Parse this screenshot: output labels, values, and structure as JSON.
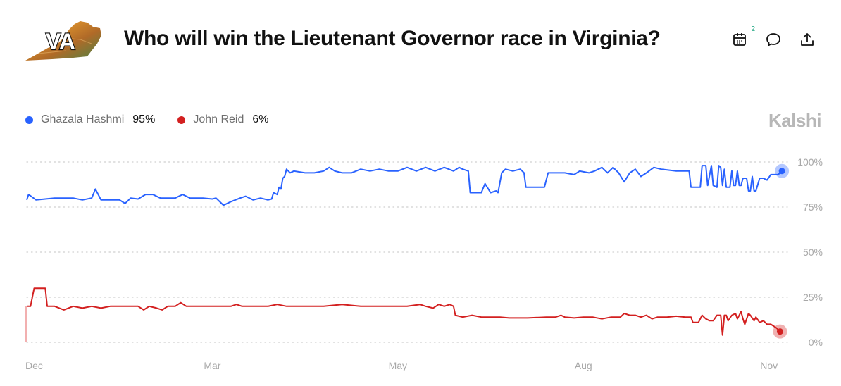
{
  "header": {
    "badge_text": "VA",
    "title": "Who will win the Lieutenant Governor race in Virginia?",
    "calendar_count": "2"
  },
  "icons": {
    "calendar": "calendar-icon",
    "comment": "comment-icon",
    "share": "share-icon"
  },
  "legend": {
    "items": [
      {
        "name": "Ghazala Hashmi",
        "value": "95%",
        "color": "#2962ff"
      },
      {
        "name": "John Reid",
        "value": "6%",
        "color": "#d32020"
      }
    ]
  },
  "brand": "Kalshi",
  "chart_data": {
    "type": "line",
    "x_tick_labels": [
      "Dec",
      "Mar",
      "May",
      "Aug",
      "Nov"
    ],
    "y_tick_labels": [
      "100%",
      "75%",
      "50%",
      "25%",
      "0%"
    ],
    "ylim": [
      0,
      100
    ],
    "grid": true,
    "legend_position": "top-left",
    "x_ticks": [
      0,
      100,
      200,
      300,
      400
    ],
    "series": [
      {
        "name": "Ghazala Hashmi",
        "color": "#2962ff",
        "current": 95,
        "points": [
          [
            0,
            79
          ],
          [
            1,
            82
          ],
          [
            5,
            79
          ],
          [
            10,
            79.5
          ],
          [
            15,
            80
          ],
          [
            20,
            80
          ],
          [
            25,
            80
          ],
          [
            30,
            79
          ],
          [
            35,
            80
          ],
          [
            37,
            85
          ],
          [
            40,
            79
          ],
          [
            45,
            79
          ],
          [
            50,
            79
          ],
          [
            53,
            77
          ],
          [
            56,
            80
          ],
          [
            60,
            79.5
          ],
          [
            64,
            82
          ],
          [
            68,
            82
          ],
          [
            72,
            80
          ],
          [
            80,
            80
          ],
          [
            84,
            82
          ],
          [
            88,
            80
          ],
          [
            95,
            80
          ],
          [
            100,
            79.5
          ],
          [
            102,
            80
          ],
          [
            106,
            76
          ],
          [
            110,
            78
          ],
          [
            115,
            80
          ],
          [
            118,
            81
          ],
          [
            122,
            79
          ],
          [
            126,
            80
          ],
          [
            130,
            79
          ],
          [
            132,
            79.5
          ],
          [
            133,
            83
          ],
          [
            135,
            82
          ],
          [
            136,
            86
          ],
          [
            137,
            85
          ],
          [
            138,
            91
          ],
          [
            139,
            92
          ],
          [
            140,
            96
          ],
          [
            142,
            94
          ],
          [
            144,
            95
          ],
          [
            150,
            94
          ],
          [
            155,
            94
          ],
          [
            160,
            95
          ],
          [
            163,
            97
          ],
          [
            166,
            95
          ],
          [
            170,
            94
          ],
          [
            175,
            94
          ],
          [
            180,
            96
          ],
          [
            185,
            95
          ],
          [
            190,
            96
          ],
          [
            195,
            95
          ],
          [
            200,
            95
          ],
          [
            205,
            97
          ],
          [
            210,
            95
          ],
          [
            215,
            97
          ],
          [
            220,
            95
          ],
          [
            225,
            97
          ],
          [
            230,
            95
          ],
          [
            233,
            97
          ],
          [
            235,
            96
          ],
          [
            238,
            95
          ],
          [
            239,
            83
          ],
          [
            241,
            83
          ],
          [
            245,
            83
          ],
          [
            247,
            88
          ],
          [
            250,
            83
          ],
          [
            253,
            84
          ],
          [
            254,
            83
          ],
          [
            256,
            94
          ],
          [
            258,
            96
          ],
          [
            262,
            95
          ],
          [
            266,
            96
          ],
          [
            268,
            94
          ],
          [
            269,
            86
          ],
          [
            275,
            86
          ],
          [
            279,
            86
          ],
          [
            281,
            94
          ],
          [
            285,
            94
          ],
          [
            290,
            94
          ],
          [
            295,
            93
          ],
          [
            298,
            95
          ],
          [
            303,
            94
          ],
          [
            306,
            95
          ],
          [
            310,
            97
          ],
          [
            313,
            94
          ],
          [
            316,
            97
          ],
          [
            319,
            94
          ],
          [
            322,
            89
          ],
          [
            325,
            94
          ],
          [
            328,
            96
          ],
          [
            331,
            92
          ],
          [
            334,
            94
          ],
          [
            338,
            97
          ],
          [
            342,
            96
          ],
          [
            350,
            95
          ],
          [
            357,
            95
          ],
          [
            358,
            86
          ],
          [
            360,
            86
          ],
          [
            363,
            86
          ],
          [
            364,
            98
          ],
          [
            366,
            98
          ],
          [
            367,
            87
          ],
          [
            369,
            98
          ],
          [
            370,
            87
          ],
          [
            372,
            86
          ],
          [
            373,
            98
          ],
          [
            374,
            97
          ],
          [
            375,
            87
          ],
          [
            376,
            96
          ],
          [
            377,
            86
          ],
          [
            379,
            86
          ],
          [
            380,
            95
          ],
          [
            381,
            87
          ],
          [
            382,
            87
          ],
          [
            383,
            95
          ],
          [
            384,
            87
          ],
          [
            385,
            87
          ],
          [
            386,
            91
          ],
          [
            388,
            91
          ],
          [
            389,
            84
          ],
          [
            390,
            84
          ],
          [
            391,
            92
          ],
          [
            392,
            84
          ],
          [
            393,
            84
          ],
          [
            395,
            91
          ],
          [
            397,
            91
          ],
          [
            399,
            90
          ],
          [
            401,
            93
          ],
          [
            405,
            93
          ],
          [
            407,
            95
          ]
        ]
      },
      {
        "name": "John Reid",
        "color": "#d32020",
        "current": 6,
        "points": [
          [
            0,
            20
          ],
          [
            2,
            20
          ],
          [
            4,
            30
          ],
          [
            6,
            30
          ],
          [
            10,
            30
          ],
          [
            11,
            20
          ],
          [
            15,
            20
          ],
          [
            20,
            18
          ],
          [
            25,
            20
          ],
          [
            30,
            19
          ],
          [
            35,
            20
          ],
          [
            40,
            19
          ],
          [
            45,
            20
          ],
          [
            50,
            20
          ],
          [
            55,
            20
          ],
          [
            60,
            20
          ],
          [
            63,
            18
          ],
          [
            66,
            20
          ],
          [
            70,
            19
          ],
          [
            73,
            18
          ],
          [
            76,
            20
          ],
          [
            80,
            20
          ],
          [
            83,
            22
          ],
          [
            86,
            20
          ],
          [
            90,
            20
          ],
          [
            100,
            20
          ],
          [
            110,
            20
          ],
          [
            113,
            21
          ],
          [
            116,
            20
          ],
          [
            125,
            20
          ],
          [
            130,
            20
          ],
          [
            135,
            21
          ],
          [
            140,
            20
          ],
          [
            150,
            20
          ],
          [
            160,
            20
          ],
          [
            170,
            21
          ],
          [
            180,
            20
          ],
          [
            190,
            20
          ],
          [
            200,
            20
          ],
          [
            205,
            20
          ],
          [
            212,
            21
          ],
          [
            215,
            20
          ],
          [
            219,
            19
          ],
          [
            222,
            21
          ],
          [
            225,
            20
          ],
          [
            228,
            21
          ],
          [
            230,
            20
          ],
          [
            231,
            15
          ],
          [
            235,
            14
          ],
          [
            240,
            15
          ],
          [
            245,
            14
          ],
          [
            250,
            14
          ],
          [
            255,
            14
          ],
          [
            260,
            13.5
          ],
          [
            270,
            13.5
          ],
          [
            280,
            14
          ],
          [
            285,
            14
          ],
          [
            288,
            15
          ],
          [
            290,
            14
          ],
          [
            295,
            13.5
          ],
          [
            300,
            14
          ],
          [
            305,
            14
          ],
          [
            310,
            13
          ],
          [
            315,
            14
          ],
          [
            320,
            14
          ],
          [
            322,
            16
          ],
          [
            325,
            15
          ],
          [
            328,
            15
          ],
          [
            331,
            14
          ],
          [
            334,
            15
          ],
          [
            337,
            13
          ],
          [
            340,
            14
          ],
          [
            345,
            14
          ],
          [
            350,
            14.5
          ],
          [
            355,
            14
          ],
          [
            358,
            14
          ],
          [
            359,
            11
          ],
          [
            362,
            11
          ],
          [
            364,
            15
          ],
          [
            366,
            13
          ],
          [
            368,
            12
          ],
          [
            370,
            12
          ],
          [
            372,
            15
          ],
          [
            374,
            15
          ],
          [
            375,
            4
          ],
          [
            376,
            15
          ],
          [
            377,
            15
          ],
          [
            378,
            12
          ],
          [
            380,
            15
          ],
          [
            382,
            16
          ],
          [
            383,
            13
          ],
          [
            385,
            17
          ],
          [
            386,
            13
          ],
          [
            387,
            10
          ],
          [
            389,
            16
          ],
          [
            390,
            15
          ],
          [
            392,
            12
          ],
          [
            393,
            14
          ],
          [
            395,
            11
          ],
          [
            397,
            12
          ],
          [
            399,
            10
          ],
          [
            401,
            10
          ],
          [
            404,
            8
          ],
          [
            406,
            6
          ]
        ]
      }
    ]
  }
}
